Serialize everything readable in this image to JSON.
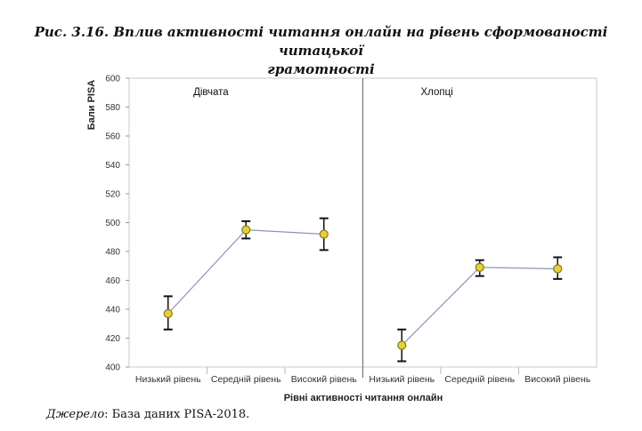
{
  "figure": {
    "title_line1": "Рис. 3.16. Вплив активності читання онлайн на рівень сформованості читацької",
    "title_line2": "грамотності"
  },
  "source": {
    "label": "Джерело",
    "text": ": База даних PISA-2018."
  },
  "chart_data": {
    "type": "line",
    "ylabel": "Бали PISA",
    "xlabel": "Рівні активності читання онлайн",
    "ylim": [
      400,
      600
    ],
    "yticks": [
      400,
      420,
      440,
      460,
      480,
      500,
      520,
      540,
      560,
      580,
      600
    ],
    "categories": [
      "Низький рівень",
      "Середній рівень",
      "Високий рівень"
    ],
    "grid": false,
    "error_bars": true,
    "panels": [
      {
        "name": "Дівчата",
        "series": [
          {
            "values": [
              437,
              495,
              492
            ],
            "lower": [
              426,
              489,
              481
            ],
            "upper": [
              449,
              501,
              503
            ]
          }
        ]
      },
      {
        "name": "Хлопці",
        "series": [
          {
            "values": [
              415,
              469,
              468
            ],
            "lower": [
              404,
              463,
              461
            ],
            "upper": [
              426,
              474,
              476
            ]
          }
        ]
      }
    ],
    "colors": {
      "marker_fill": "#e6d03a",
      "marker_stroke": "#8a7a10",
      "line": "#8a94b8",
      "errorbar": "#111111",
      "frame": "#c8c8c8",
      "divider": "#666666"
    }
  }
}
